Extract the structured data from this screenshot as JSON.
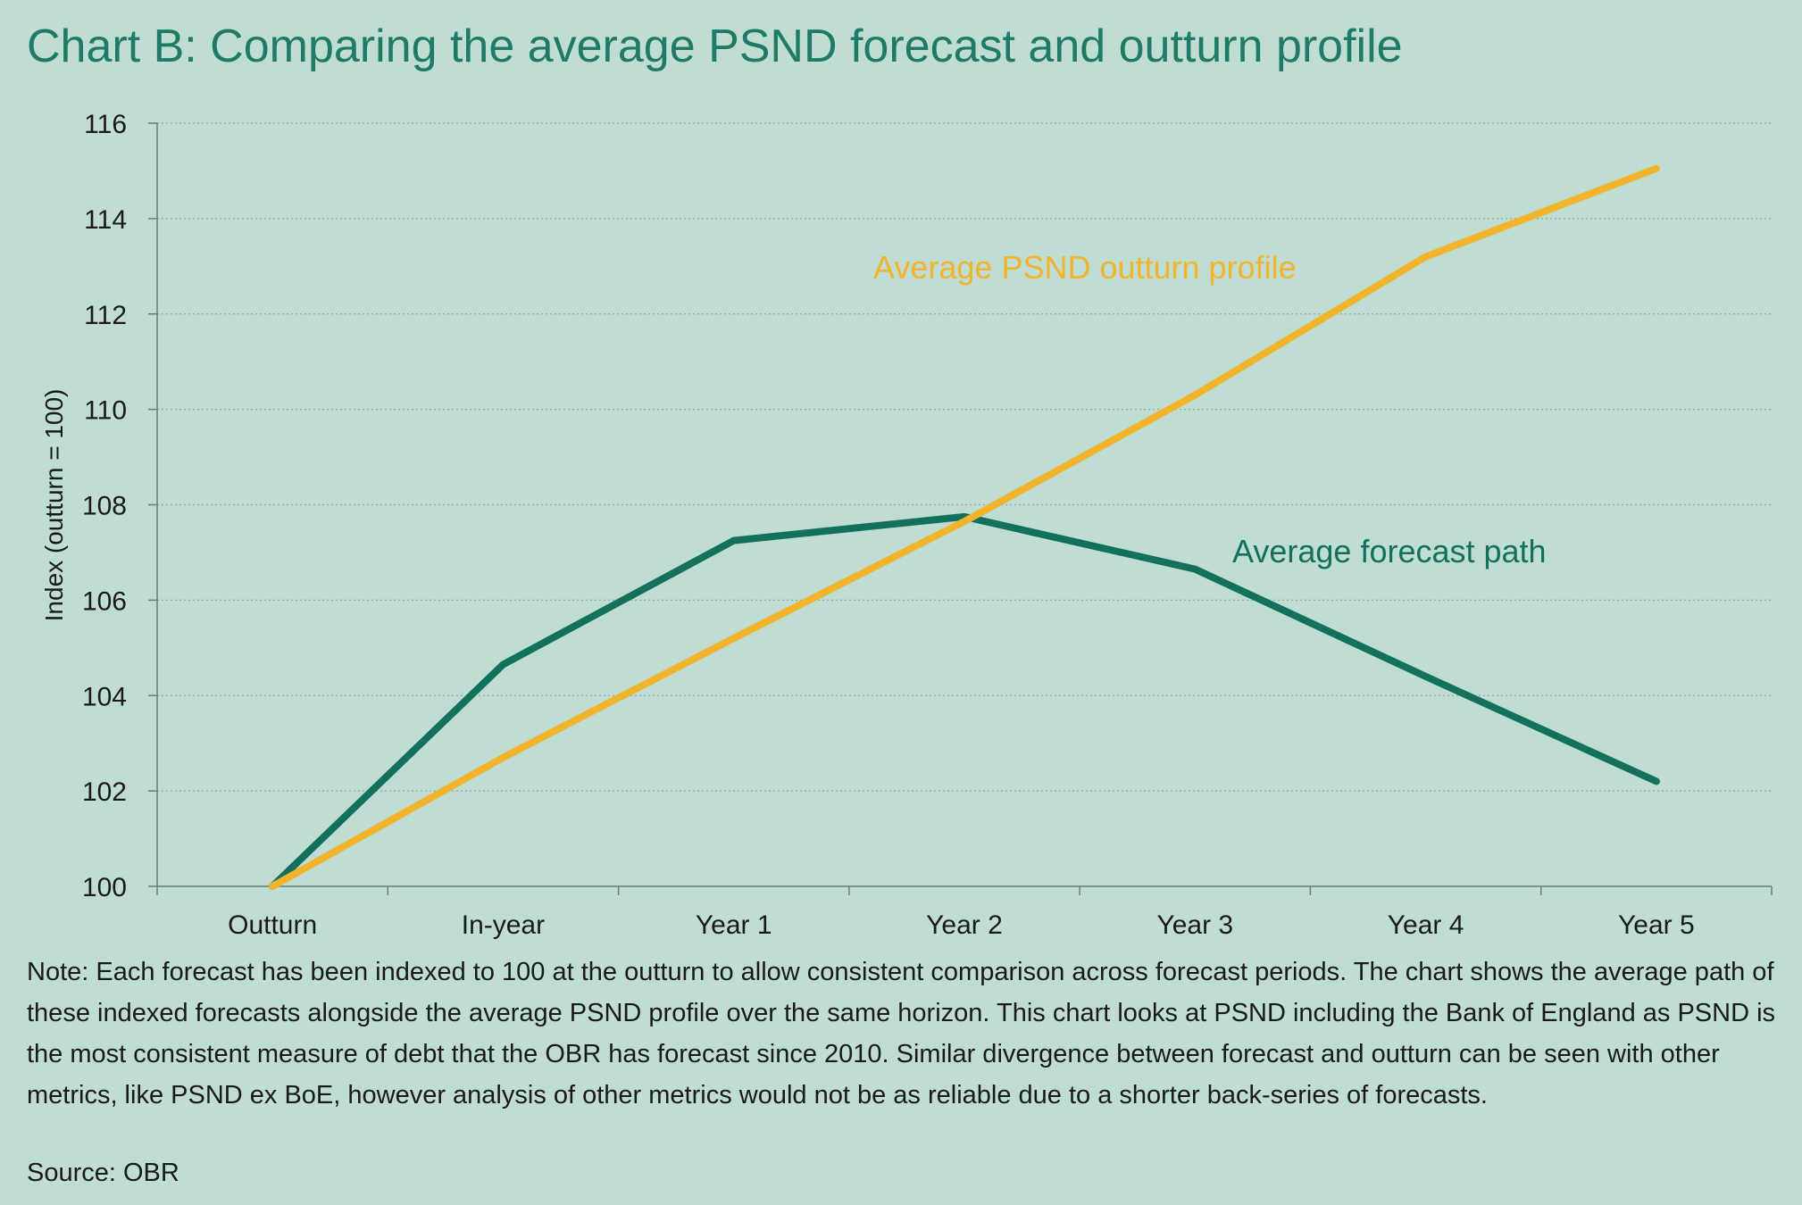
{
  "title": "Chart B: Comparing the average PSND forecast and outturn profile",
  "note": "Note: Each forecast has been indexed to 100 at the outturn to allow consistent comparison across forecast periods. The chart shows the average path of these indexed forecasts alongside the average PSND profile over the same horizon. This chart looks at PSND including the Bank of England as PSND is the most consistent measure of debt that the OBR has forecast since 2010. Similar divergence between forecast and outturn can be seen with other metrics, like PSND ex BoE, however analysis of other metrics would not be as reliable due to a shorter back-series of forecasts.",
  "source": "Source: OBR",
  "chart_data": {
    "type": "line",
    "title": "Chart B: Comparing the average PSND forecast and outturn profile",
    "xlabel": "",
    "ylabel": "Index  (outturn = 100)",
    "categories": [
      "Outturn",
      "In-year",
      "Year 1",
      "Year 2",
      "Year 3",
      "Year 4",
      "Year 5"
    ],
    "ylim": [
      100,
      116
    ],
    "yticks": [
      100,
      102,
      104,
      106,
      108,
      110,
      112,
      114,
      116
    ],
    "grid": true,
    "legend": "inline labels",
    "series": [
      {
        "name": "Average forecast path",
        "color": "#13705d",
        "values": [
          100,
          104.65,
          107.25,
          107.75,
          106.65,
          104.4,
          102.2
        ]
      },
      {
        "name": "Average PSND outturn profile",
        "color": "#f2b42c",
        "values": [
          100,
          102.7,
          105.2,
          107.65,
          110.3,
          113.2,
          115.05
        ]
      }
    ]
  }
}
